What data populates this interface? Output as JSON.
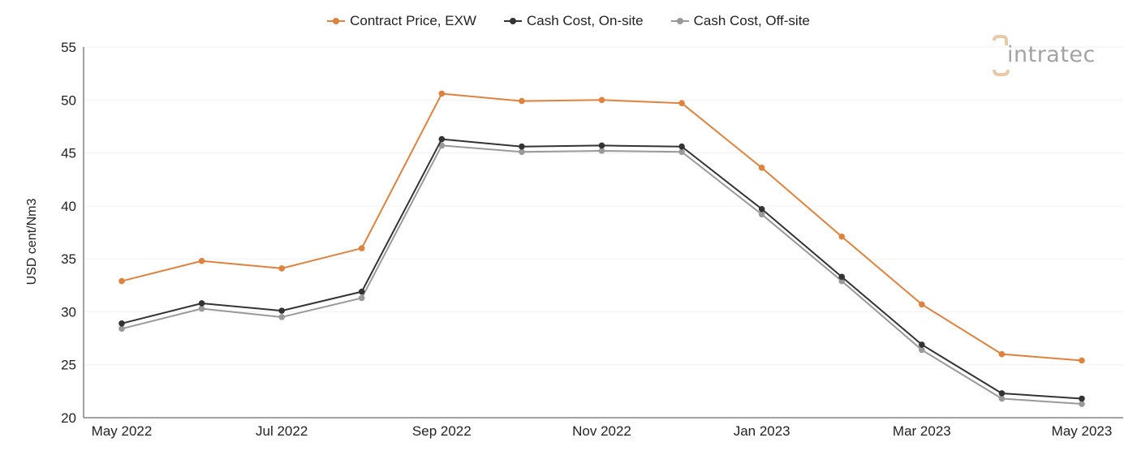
{
  "chart_data": {
    "type": "line",
    "title": "",
    "xlabel": "",
    "ylabel": "USD cent/Nm3",
    "ylim": [
      20,
      55
    ],
    "yticks": [
      20,
      25,
      30,
      35,
      40,
      45,
      50,
      55
    ],
    "x": [
      "May 2022",
      "Jun 2022",
      "Jul 2022",
      "Aug 2022",
      "Sep 2022",
      "Oct 2022",
      "Nov 2022",
      "Dec 2022",
      "Jan 2023",
      "Feb 2023",
      "Mar 2023",
      "Apr 2023",
      "May 2023"
    ],
    "xtick_labels": [
      "May 2022",
      "Jul 2022",
      "Sep 2022",
      "Nov 2022",
      "Jan 2023",
      "Mar 2023",
      "May 2023"
    ],
    "grid": "horizontal",
    "legend_position": "top",
    "series": [
      {
        "name": "Contract Price, EXW",
        "color": "#e0823d",
        "values": [
          32.9,
          34.8,
          34.1,
          36.0,
          50.6,
          49.9,
          50.0,
          49.7,
          43.6,
          37.1,
          30.7,
          26.0,
          25.4
        ]
      },
      {
        "name": "Cash Cost, On-site",
        "color": "#333333",
        "values": [
          28.9,
          30.8,
          30.1,
          31.9,
          46.3,
          45.6,
          45.7,
          45.6,
          39.7,
          33.3,
          26.9,
          22.3,
          21.8
        ]
      },
      {
        "name": "Cash Cost, Off-site",
        "color": "#999999",
        "values": [
          28.4,
          30.3,
          29.5,
          31.3,
          45.7,
          45.1,
          45.2,
          45.1,
          39.2,
          32.9,
          26.4,
          21.8,
          21.3
        ]
      }
    ]
  },
  "logo": {
    "text": "intratec",
    "prefix": "i"
  }
}
